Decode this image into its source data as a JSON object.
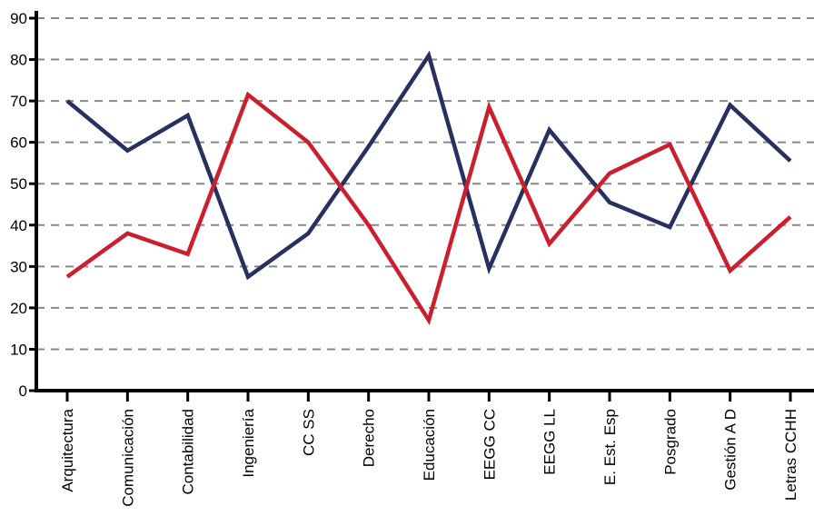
{
  "chart_data": {
    "type": "line",
    "categories": [
      "Arquitectura",
      "Comunicación",
      "Contabilidad",
      "Ingeniería",
      "CC SS",
      "Derecho",
      "Educación",
      "EEGG CC",
      "EEGG LL",
      "E. Est. Esp",
      "Posgrado",
      "Gestión A D",
      "Letras CCHH"
    ],
    "series": [
      {
        "values": [
          70,
          58,
          66.5,
          27.5,
          38,
          59,
          81,
          29.5,
          63,
          45.5,
          39.5,
          69,
          55.5
        ],
        "color": "#27305f"
      },
      {
        "values": [
          27.5,
          38,
          33,
          71.5,
          60,
          40,
          17,
          68.5,
          35.5,
          52.5,
          59.5,
          29,
          42
        ],
        "color": "#cc1f2d"
      }
    ],
    "ylim": [
      0,
      90
    ],
    "yticks": [
      0,
      10,
      20,
      30,
      40,
      50,
      60,
      70,
      80,
      90
    ],
    "grid": true,
    "title": "",
    "xlabel": "",
    "ylabel": ""
  }
}
